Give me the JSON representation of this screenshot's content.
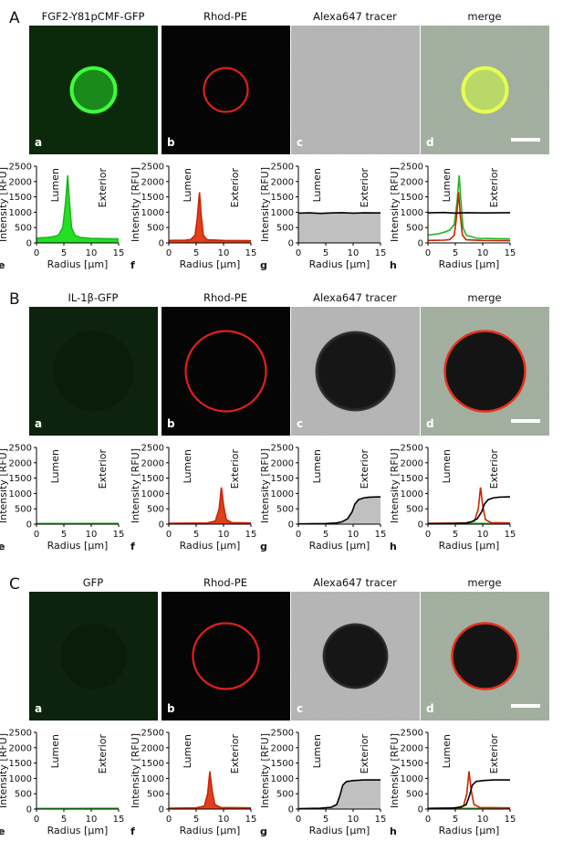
{
  "figure": {
    "rows": [
      {
        "label": "A",
        "columns": [
          "FGF2-Y81pCMF-GFP",
          "Rhod-PE",
          "Alexa647 tracer",
          "merge"
        ],
        "image_letters": [
          "a",
          "b",
          "c",
          "d"
        ],
        "plot_letters": [
          "e",
          "f",
          "g",
          "h"
        ],
        "dark_vesicle": false
      },
      {
        "label": "B",
        "columns": [
          "IL-1β-GFP",
          "Rhod-PE",
          "Alexa647 tracer",
          "merge"
        ],
        "image_letters": [
          "a",
          "b",
          "c",
          "d"
        ],
        "plot_letters": [
          "e",
          "f",
          "g",
          "h"
        ],
        "dark_vesicle": true
      },
      {
        "label": "C",
        "columns": [
          "GFP",
          "Rhod-PE",
          "Alexa647 tracer",
          "merge"
        ],
        "image_letters": [
          "a",
          "b",
          "c",
          "d"
        ],
        "plot_letters": [
          "e",
          "f",
          "g",
          "h"
        ],
        "dark_vesicle": true
      }
    ],
    "colors": {
      "green": "#1fb51f",
      "green_fill": "#22e022",
      "red": "#cc2200",
      "red_fill": "#e0401a",
      "tracer": "#000000",
      "tracer_fill": "#c0c0c0"
    }
  },
  "chart_data": [
    {
      "type": "line",
      "row": "A",
      "panel": "e",
      "xlabel": "Radius [µm]",
      "ylabel": "Intensity [RFU]",
      "xlim": [
        0,
        15
      ],
      "ylim": [
        0,
        2500
      ],
      "xticks": [
        0,
        5,
        10,
        15
      ],
      "yticks": [
        0,
        500,
        1000,
        1500,
        2000,
        2500
      ],
      "annotations": [
        "Lumen",
        "Exterior"
      ],
      "series": [
        {
          "color": "green",
          "fill": true,
          "points": [
            [
              0,
              150
            ],
            [
              1,
              170
            ],
            [
              2,
              180
            ],
            [
              3,
              200
            ],
            [
              4,
              250
            ],
            [
              4.8,
              500
            ],
            [
              5.3,
              1300
            ],
            [
              5.7,
              2200
            ],
            [
              6.0,
              1400
            ],
            [
              6.4,
              500
            ],
            [
              7,
              250
            ],
            [
              8,
              180
            ],
            [
              10,
              150
            ],
            [
              12,
              140
            ],
            [
              15,
              130
            ]
          ]
        }
      ]
    },
    {
      "type": "line",
      "row": "A",
      "panel": "f",
      "xlabel": "Radius [µm]",
      "ylabel": "Intensity [RFU]",
      "xlim": [
        0,
        15
      ],
      "ylim": [
        0,
        2500
      ],
      "xticks": [
        0,
        5,
        10,
        15
      ],
      "yticks": [
        0,
        500,
        1000,
        1500,
        2000,
        2500
      ],
      "annotations": [
        "Lumen",
        "Exterior"
      ],
      "series": [
        {
          "color": "red",
          "fill": true,
          "points": [
            [
              0,
              80
            ],
            [
              3,
              90
            ],
            [
              4,
              110
            ],
            [
              4.8,
              250
            ],
            [
              5.2,
              800
            ],
            [
              5.6,
              1650
            ],
            [
              5.9,
              900
            ],
            [
              6.3,
              250
            ],
            [
              7,
              100
            ],
            [
              10,
              80
            ],
            [
              15,
              70
            ]
          ]
        }
      ]
    },
    {
      "type": "line",
      "row": "A",
      "panel": "g",
      "xlabel": "Radius [µm]",
      "ylabel": "Intensity [RFU]",
      "xlim": [
        0,
        15
      ],
      "ylim": [
        0,
        2500
      ],
      "xticks": [
        0,
        5,
        10,
        15
      ],
      "yticks": [
        0,
        500,
        1000,
        1500,
        2000,
        2500
      ],
      "annotations": [
        "Lumen",
        "Exterior"
      ],
      "series": [
        {
          "color": "tracer",
          "fill": true,
          "points": [
            [
              0,
              970
            ],
            [
              2,
              980
            ],
            [
              4,
              960
            ],
            [
              6,
              975
            ],
            [
              8,
              985
            ],
            [
              10,
              970
            ],
            [
              12,
              980
            ],
            [
              15,
              975
            ]
          ]
        }
      ]
    },
    {
      "type": "line",
      "row": "A",
      "panel": "h",
      "xlabel": "Radius [µm]",
      "ylabel": "Intensity [RFU]",
      "xlim": [
        0,
        15
      ],
      "ylim": [
        0,
        2500
      ],
      "xticks": [
        0,
        5,
        10,
        15
      ],
      "yticks": [
        0,
        500,
        1000,
        1500,
        2000,
        2500
      ],
      "annotations": [
        "Lumen",
        "Exterior"
      ],
      "series": [
        {
          "color": "green",
          "fill": false,
          "points": [
            [
              0,
              250
            ],
            [
              2,
              300
            ],
            [
              3,
              350
            ],
            [
              4,
              420
            ],
            [
              4.8,
              600
            ],
            [
              5.3,
              1300
            ],
            [
              5.7,
              2200
            ],
            [
              6.0,
              1400
            ],
            [
              6.4,
              500
            ],
            [
              7,
              250
            ],
            [
              9,
              150
            ],
            [
              15,
              130
            ]
          ]
        },
        {
          "color": "red",
          "fill": false,
          "points": [
            [
              0,
              80
            ],
            [
              3,
              90
            ],
            [
              4,
              110
            ],
            [
              4.8,
              250
            ],
            [
              5.2,
              800
            ],
            [
              5.6,
              1650
            ],
            [
              5.9,
              900
            ],
            [
              6.3,
              250
            ],
            [
              7,
              100
            ],
            [
              10,
              80
            ],
            [
              15,
              70
            ]
          ]
        },
        {
          "color": "tracer",
          "fill": false,
          "points": [
            [
              0,
              980
            ],
            [
              3,
              990
            ],
            [
              5,
              970
            ],
            [
              7,
              985
            ],
            [
              10,
              975
            ],
            [
              15,
              985
            ]
          ]
        }
      ]
    },
    {
      "type": "line",
      "row": "B",
      "panel": "e",
      "xlabel": "Radius [µm]",
      "ylabel": "Intensity [RFU]",
      "xlim": [
        0,
        15
      ],
      "ylim": [
        0,
        2500
      ],
      "xticks": [
        0,
        5,
        10,
        15
      ],
      "yticks": [
        0,
        500,
        1000,
        1500,
        2000,
        2500
      ],
      "annotations": [
        "Lumen",
        "Exterior"
      ],
      "series": [
        {
          "color": "green",
          "fill": false,
          "points": [
            [
              0,
              20
            ],
            [
              5,
              22
            ],
            [
              10,
              25
            ],
            [
              15,
              24
            ]
          ]
        }
      ]
    },
    {
      "type": "line",
      "row": "B",
      "panel": "f",
      "xlabel": "Radius [µm]",
      "ylabel": "Intensity [RFU]",
      "xlim": [
        0,
        15
      ],
      "ylim": [
        0,
        2500
      ],
      "xticks": [
        0,
        5,
        10,
        15
      ],
      "yticks": [
        0,
        500,
        1000,
        1500,
        2000,
        2500
      ],
      "annotations": [
        "Lumen",
        "Exterior"
      ],
      "series": [
        {
          "color": "red",
          "fill": true,
          "points": [
            [
              0,
              30
            ],
            [
              7,
              40
            ],
            [
              8.5,
              100
            ],
            [
              9.2,
              500
            ],
            [
              9.6,
              1200
            ],
            [
              10.0,
              600
            ],
            [
              10.5,
              150
            ],
            [
              11.5,
              50
            ],
            [
              15,
              40
            ]
          ]
        }
      ]
    },
    {
      "type": "line",
      "row": "B",
      "panel": "g",
      "xlabel": "Radius [µm]",
      "ylabel": "Intensity [RFU]",
      "xlim": [
        0,
        15
      ],
      "ylim": [
        0,
        2500
      ],
      "xticks": [
        0,
        5,
        10,
        15
      ],
      "yticks": [
        0,
        500,
        1000,
        1500,
        2000,
        2500
      ],
      "annotations": [
        "Lumen",
        "Exterior"
      ],
      "series": [
        {
          "color": "tracer",
          "fill": true,
          "points": [
            [
              0,
              10
            ],
            [
              5,
              20
            ],
            [
              7,
              40
            ],
            [
              8,
              80
            ],
            [
              9,
              180
            ],
            [
              9.8,
              400
            ],
            [
              10.3,
              650
            ],
            [
              11,
              800
            ],
            [
              12,
              860
            ],
            [
              13,
              880
            ],
            [
              15,
              890
            ]
          ]
        }
      ]
    },
    {
      "type": "line",
      "row": "B",
      "panel": "h",
      "xlabel": "Radius [µm]",
      "ylabel": "Intensity [RFU]",
      "xlim": [
        0,
        15
      ],
      "ylim": [
        0,
        2500
      ],
      "xticks": [
        0,
        5,
        10,
        15
      ],
      "yticks": [
        0,
        500,
        1000,
        1500,
        2000,
        2500
      ],
      "annotations": [
        "Lumen",
        "Exterior"
      ],
      "series": [
        {
          "color": "green",
          "fill": false,
          "points": [
            [
              0,
              20
            ],
            [
              10,
              25
            ],
            [
              15,
              24
            ]
          ]
        },
        {
          "color": "red",
          "fill": false,
          "points": [
            [
              0,
              30
            ],
            [
              7,
              40
            ],
            [
              8.5,
              100
            ],
            [
              9.2,
              500
            ],
            [
              9.6,
              1200
            ],
            [
              10.0,
              600
            ],
            [
              10.5,
              150
            ],
            [
              11.5,
              50
            ],
            [
              15,
              40
            ]
          ]
        },
        {
          "color": "tracer",
          "fill": false,
          "points": [
            [
              0,
              10
            ],
            [
              5,
              20
            ],
            [
              7,
              40
            ],
            [
              8,
              80
            ],
            [
              9,
              180
            ],
            [
              9.8,
              400
            ],
            [
              10.3,
              650
            ],
            [
              11,
              800
            ],
            [
              12,
              860
            ],
            [
              13,
              880
            ],
            [
              15,
              890
            ]
          ]
        }
      ]
    },
    {
      "type": "line",
      "row": "C",
      "panel": "e",
      "xlabel": "Radius [µm]",
      "ylabel": "Intensity [RFU]",
      "xlim": [
        0,
        15
      ],
      "ylim": [
        0,
        2500
      ],
      "xticks": [
        0,
        5,
        10,
        15
      ],
      "yticks": [
        0,
        500,
        1000,
        1500,
        2000,
        2500
      ],
      "annotations": [
        "Lumen",
        "Exterior"
      ],
      "series": [
        {
          "color": "green",
          "fill": false,
          "points": [
            [
              0,
              20
            ],
            [
              5,
              22
            ],
            [
              10,
              24
            ],
            [
              15,
              24
            ]
          ]
        }
      ]
    },
    {
      "type": "line",
      "row": "C",
      "panel": "f",
      "xlabel": "Radius [µm]",
      "ylabel": "Intensity [RFU]",
      "xlim": [
        0,
        15
      ],
      "ylim": [
        0,
        2500
      ],
      "xticks": [
        0,
        5,
        10,
        15
      ],
      "yticks": [
        0,
        500,
        1000,
        1500,
        2000,
        2500
      ],
      "annotations": [
        "Lumen",
        "Exterior"
      ],
      "series": [
        {
          "color": "red",
          "fill": true,
          "points": [
            [
              0,
              30
            ],
            [
              5,
              40
            ],
            [
              6.5,
              100
            ],
            [
              7.1,
              500
            ],
            [
              7.5,
              1230
            ],
            [
              7.9,
              600
            ],
            [
              8.4,
              150
            ],
            [
              9.5,
              50
            ],
            [
              15,
              40
            ]
          ]
        }
      ]
    },
    {
      "type": "line",
      "row": "C",
      "panel": "g",
      "xlabel": "Radius [µm]",
      "ylabel": "Intensity [RFU]",
      "xlim": [
        0,
        15
      ],
      "ylim": [
        0,
        2500
      ],
      "xticks": [
        0,
        5,
        10,
        15
      ],
      "yticks": [
        0,
        500,
        1000,
        1500,
        2000,
        2500
      ],
      "annotations": [
        "Lumen",
        "Exterior"
      ],
      "series": [
        {
          "color": "tracer",
          "fill": true,
          "points": [
            [
              0,
              15
            ],
            [
              4,
              30
            ],
            [
              6,
              60
            ],
            [
              7,
              150
            ],
            [
              7.6,
              450
            ],
            [
              8.1,
              780
            ],
            [
              8.8,
              900
            ],
            [
              10,
              930
            ],
            [
              12,
              950
            ],
            [
              15,
              950
            ]
          ]
        }
      ]
    },
    {
      "type": "line",
      "row": "C",
      "panel": "h",
      "xlabel": "Radius [µm]",
      "ylabel": "Intensity [RFU]",
      "xlim": [
        0,
        15
      ],
      "ylim": [
        0,
        2500
      ],
      "xticks": [
        0,
        5,
        10,
        15
      ],
      "yticks": [
        0,
        500,
        1000,
        1500,
        2000,
        2500
      ],
      "annotations": [
        "Lumen",
        "Exterior"
      ],
      "series": [
        {
          "color": "green",
          "fill": false,
          "points": [
            [
              0,
              20
            ],
            [
              10,
              24
            ],
            [
              15,
              24
            ]
          ]
        },
        {
          "color": "red",
          "fill": false,
          "points": [
            [
              0,
              30
            ],
            [
              5,
              40
            ],
            [
              6.5,
              100
            ],
            [
              7.1,
              500
            ],
            [
              7.5,
              1230
            ],
            [
              7.9,
              600
            ],
            [
              8.4,
              150
            ],
            [
              9.5,
              50
            ],
            [
              15,
              40
            ]
          ]
        },
        {
          "color": "tracer",
          "fill": false,
          "points": [
            [
              0,
              15
            ],
            [
              4,
              30
            ],
            [
              6,
              60
            ],
            [
              7,
              150
            ],
            [
              7.6,
              450
            ],
            [
              8.1,
              780
            ],
            [
              8.8,
              900
            ],
            [
              10,
              930
            ],
            [
              12,
              950
            ],
            [
              15,
              950
            ]
          ]
        }
      ]
    }
  ]
}
